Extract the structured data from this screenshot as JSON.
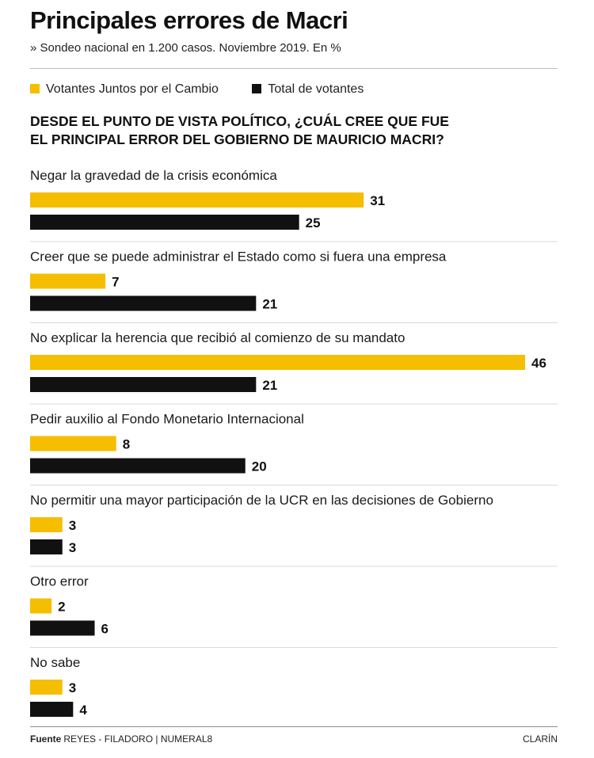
{
  "title": "Principales errores de Macri",
  "subtitle": "» Sondeo nacional en 1.200 casos. Noviembre 2019. En %",
  "question_lines": [
    "DESDE EL PUNTO DE VISTA POLÍTICO,  ¿CUÁL CREE QUE FUE",
    "EL PRINCIPAL ERROR  DEL GOBIERNO DE MAURICIO MACRI?"
  ],
  "colors": {
    "yellow": "#f5be00",
    "black": "#111111",
    "divider": "#d9d9d9"
  },
  "chart_data": {
    "type": "bar",
    "orientation": "horizontal",
    "xlim": [
      0,
      46
    ],
    "categories": [
      "Negar la gravedad de la crisis económica",
      "Creer que se puede administrar el Estado como si fuera una empresa",
      "No explicar la herencia que recibió al comienzo de su mandato",
      "Pedir auxilio al Fondo Monetario Internacional",
      "No permitir una mayor participación de la UCR en las decisiones de Gobierno",
      "Otro error",
      "No sabe"
    ],
    "series": [
      {
        "name": "Votantes Juntos por el Cambio",
        "color": "#f5be00",
        "values": [
          31,
          7,
          46,
          8,
          3,
          2,
          3
        ]
      },
      {
        "name": "Total de votantes",
        "color": "#111111",
        "values": [
          25,
          21,
          21,
          20,
          3,
          6,
          4
        ]
      }
    ],
    "legend_position": "top-left"
  },
  "footer": {
    "source_label": "Fuente",
    "source_text": "REYES - FILADORO | NUMERAL8",
    "brand": "CLARÍN"
  }
}
